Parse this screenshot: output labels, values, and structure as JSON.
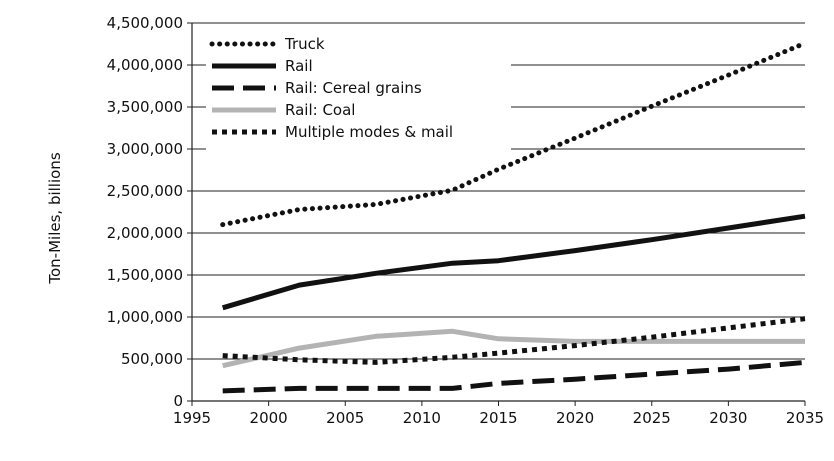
{
  "chart_data": {
    "type": "line",
    "title": "",
    "xlabel": "",
    "ylabel": "Ton-Miles, billions",
    "xlim": [
      1995,
      2035
    ],
    "ylim": [
      0,
      4500000
    ],
    "x_ticks": [
      "1995",
      "2000",
      "2005",
      "2010",
      "2015",
      "2020",
      "2025",
      "2030",
      "2035"
    ],
    "y_ticks": [
      "0",
      "500,000",
      "1,000,000",
      "1,500,000",
      "2,000,000",
      "2,500,000",
      "3,000,000",
      "3,500,000",
      "4,000,000",
      "4,500,000"
    ],
    "grid": "horizontal",
    "legend_position": "top-left",
    "series": [
      {
        "name": "Truck",
        "style": "dotted",
        "color": "#111111",
        "points": [
          [
            1997,
            2100000
          ],
          [
            2002,
            2280000
          ],
          [
            2007,
            2340000
          ],
          [
            2012,
            2510000
          ],
          [
            2015,
            2760000
          ],
          [
            2020,
            3130000
          ],
          [
            2025,
            3510000
          ],
          [
            2030,
            3880000
          ],
          [
            2035,
            4260000
          ]
        ]
      },
      {
        "name": "Rail",
        "style": "solid",
        "color": "#111111",
        "points": [
          [
            1997,
            1110000
          ],
          [
            2002,
            1380000
          ],
          [
            2007,
            1520000
          ],
          [
            2012,
            1640000
          ],
          [
            2015,
            1670000
          ],
          [
            2020,
            1790000
          ],
          [
            2025,
            1920000
          ],
          [
            2030,
            2060000
          ],
          [
            2035,
            2200000
          ]
        ]
      },
      {
        "name": "Rail: Cereal grains",
        "style": "dashed",
        "color": "#111111",
        "points": [
          [
            1997,
            120000
          ],
          [
            2002,
            150000
          ],
          [
            2007,
            150000
          ],
          [
            2012,
            150000
          ],
          [
            2015,
            210000
          ],
          [
            2020,
            260000
          ],
          [
            2025,
            320000
          ],
          [
            2030,
            380000
          ],
          [
            2035,
            460000
          ]
        ]
      },
      {
        "name": "Rail: Coal",
        "style": "solid",
        "color": "#b3b3b3",
        "points": [
          [
            1997,
            420000
          ],
          [
            2002,
            630000
          ],
          [
            2007,
            770000
          ],
          [
            2012,
            830000
          ],
          [
            2015,
            740000
          ],
          [
            2020,
            710000
          ],
          [
            2025,
            710000
          ],
          [
            2030,
            710000
          ],
          [
            2035,
            710000
          ]
        ]
      },
      {
        "name": "Multiple modes & mail",
        "style": "dotted-square",
        "color": "#111111",
        "points": [
          [
            1997,
            540000
          ],
          [
            2002,
            490000
          ],
          [
            2007,
            460000
          ],
          [
            2012,
            520000
          ],
          [
            2015,
            570000
          ],
          [
            2020,
            660000
          ],
          [
            2025,
            760000
          ],
          [
            2030,
            870000
          ],
          [
            2035,
            980000
          ]
        ]
      }
    ]
  }
}
